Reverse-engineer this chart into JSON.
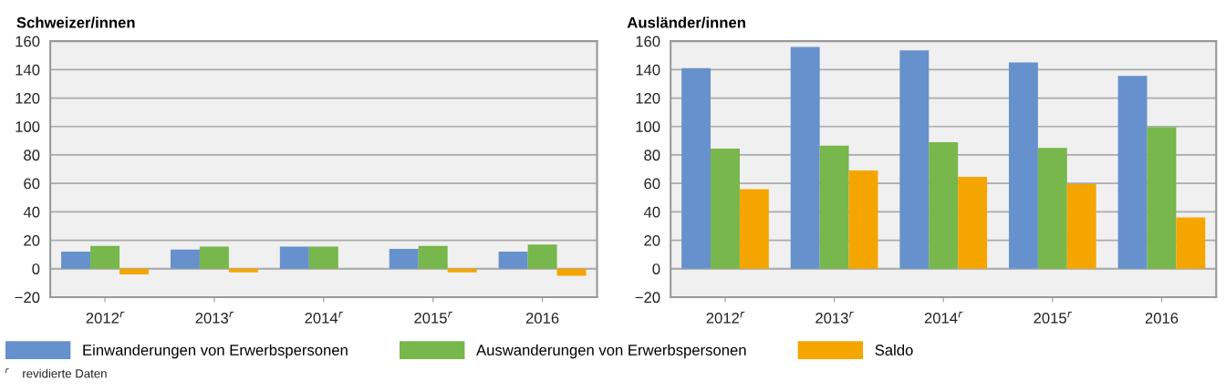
{
  "chart_data": [
    {
      "type": "bar",
      "title": "Schweizer/innen",
      "categories": [
        "2012$^{r}$",
        "2013$^{r}$",
        "2014$^{r}$",
        "2015$^{r}$",
        "2016"
      ],
      "series": [
        {
          "name": "Einwanderungen von Erwerbspersonen",
          "color": "#6691cc",
          "values": [
            12,
            13.5,
            15.5,
            14,
            12
          ]
        },
        {
          "name": "Auswanderungen von Erwerbspersonen",
          "color": "#77b74b",
          "values": [
            16,
            15.5,
            15.5,
            16,
            17
          ]
        },
        {
          "name": "Saldo",
          "color": "#f5a500",
          "values": [
            -4,
            -2.5,
            0,
            -2.5,
            -5
          ]
        }
      ],
      "ylim": [
        -20,
        160
      ],
      "yticks": [
        {
          "value": -20,
          "label": "−20"
        },
        0,
        20,
        40,
        60,
        80,
        100,
        120,
        140,
        160
      ],
      "grid": "y",
      "legend": "bottom",
      "annotations": [
        "$^{r}$    revidierte Daten"
      ]
    },
    {
      "type": "bar",
      "title": "Ausländer/innen",
      "categories": [
        "2012$^{r}$",
        "2013$^{r}$",
        "2014$^{r}$",
        "2015$^{r}$",
        "2016"
      ],
      "series": [
        {
          "color": "#6691cc",
          "values": [
            141,
            156,
            153.5,
            145,
            135.5
          ]
        },
        {
          "color": "#77b74b",
          "values": [
            84.5,
            86.5,
            89,
            85,
            99.5
          ]
        },
        {
          "color": "#f5a500",
          "values": [
            56,
            69,
            64.5,
            59.5,
            36
          ]
        }
      ],
      "ylim": [
        -20,
        160
      ],
      "yticks": [
        {
          "value": -20,
          "label": "−20"
        },
        0,
        20,
        40,
        60,
        80,
        100,
        120,
        140,
        160
      ],
      "grid": "y"
    }
  ]
}
